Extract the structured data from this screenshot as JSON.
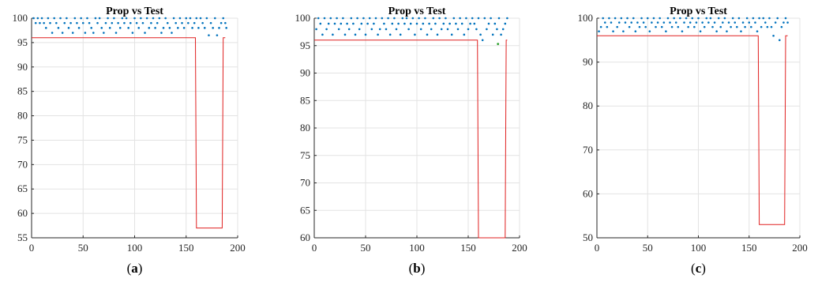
{
  "chart_data": [
    {
      "type": "scatter",
      "panel": "(a)",
      "panel_letter": "a",
      "title": "Prop vs Test",
      "xlabel": "",
      "ylabel": "",
      "xlim": [
        0,
        200
      ],
      "ylim": [
        55,
        100
      ],
      "xticks": [
        0,
        50,
        100,
        150,
        200
      ],
      "yticks": [
        55,
        60,
        65,
        70,
        75,
        80,
        85,
        90,
        95,
        100
      ],
      "grid": true,
      "colors": {
        "scatter": "#0072bd",
        "line": "#e02020",
        "green_point": "#2ca02c"
      },
      "scatter_points": [
        [
          2,
          100
        ],
        [
          4,
          99
        ],
        [
          6,
          100
        ],
        [
          8,
          99
        ],
        [
          10,
          100
        ],
        [
          12,
          99
        ],
        [
          14,
          98
        ],
        [
          16,
          100
        ],
        [
          18,
          99
        ],
        [
          20,
          97
        ],
        [
          22,
          100
        ],
        [
          24,
          99
        ],
        [
          26,
          98
        ],
        [
          28,
          100
        ],
        [
          30,
          97
        ],
        [
          32,
          99
        ],
        [
          34,
          100
        ],
        [
          36,
          98
        ],
        [
          38,
          99
        ],
        [
          40,
          97
        ],
        [
          42,
          100
        ],
        [
          44,
          99
        ],
        [
          46,
          98
        ],
        [
          48,
          100
        ],
        [
          50,
          99
        ],
        [
          52,
          97
        ],
        [
          54,
          100
        ],
        [
          56,
          99
        ],
        [
          58,
          98
        ],
        [
          60,
          97
        ],
        [
          62,
          100
        ],
        [
          64,
          99
        ],
        [
          66,
          100
        ],
        [
          68,
          98
        ],
        [
          70,
          97
        ],
        [
          72,
          99
        ],
        [
          74,
          100
        ],
        [
          76,
          98
        ],
        [
          78,
          99
        ],
        [
          80,
          100
        ],
        [
          82,
          97
        ],
        [
          84,
          99
        ],
        [
          86,
          98
        ],
        [
          88,
          100
        ],
        [
          90,
          99
        ],
        [
          92,
          100
        ],
        [
          94,
          98
        ],
        [
          96,
          99
        ],
        [
          98,
          97
        ],
        [
          100,
          100
        ],
        [
          102,
          99
        ],
        [
          104,
          98
        ],
        [
          106,
          100
        ],
        [
          108,
          99
        ],
        [
          110,
          97
        ],
        [
          112,
          100
        ],
        [
          114,
          98
        ],
        [
          116,
          99
        ],
        [
          118,
          100
        ],
        [
          120,
          98
        ],
        [
          122,
          99
        ],
        [
          124,
          100
        ],
        [
          126,
          97
        ],
        [
          128,
          98
        ],
        [
          130,
          100
        ],
        [
          132,
          99
        ],
        [
          134,
          98
        ],
        [
          136,
          97
        ],
        [
          138,
          100
        ],
        [
          140,
          99
        ],
        [
          142,
          98
        ],
        [
          144,
          100
        ],
        [
          146,
          99
        ],
        [
          148,
          98
        ],
        [
          150,
          100
        ],
        [
          152,
          99
        ],
        [
          154,
          100
        ],
        [
          156,
          98
        ],
        [
          158,
          99
        ],
        [
          160,
          100
        ],
        [
          162,
          98
        ],
        [
          164,
          100
        ],
        [
          166,
          99
        ],
        [
          168,
          98
        ],
        [
          170,
          100
        ],
        [
          172,
          96.5
        ],
        [
          174,
          99
        ],
        [
          176,
          98
        ],
        [
          178,
          100
        ],
        [
          180,
          96.5
        ],
        [
          182,
          98
        ],
        [
          184,
          99
        ],
        [
          186,
          100
        ],
        [
          188,
          99
        ],
        [
          189,
          98
        ]
      ],
      "line_points": [
        [
          0,
          96
        ],
        [
          159,
          96
        ],
        [
          160,
          57
        ],
        [
          185,
          57
        ],
        [
          186,
          96
        ],
        [
          188,
          96
        ]
      ]
    },
    {
      "type": "scatter",
      "panel": "(b)",
      "panel_letter": "b",
      "title": "Prop vs Test",
      "xlabel": "",
      "ylabel": "",
      "xlim": [
        0,
        200
      ],
      "ylim": [
        60,
        100
      ],
      "xticks": [
        0,
        50,
        100,
        150,
        200
      ],
      "yticks": [
        60,
        65,
        70,
        75,
        80,
        85,
        90,
        95,
        100
      ],
      "grid": true,
      "colors": {
        "scatter": "#0072bd",
        "line": "#e02020",
        "green_point": "#2ca02c"
      },
      "scatter_points": [
        [
          2,
          98
        ],
        [
          4,
          100
        ],
        [
          6,
          99
        ],
        [
          8,
          97
        ],
        [
          10,
          100
        ],
        [
          12,
          98
        ],
        [
          14,
          99
        ],
        [
          16,
          100
        ],
        [
          18,
          97
        ],
        [
          20,
          99
        ],
        [
          22,
          100
        ],
        [
          24,
          98
        ],
        [
          26,
          99
        ],
        [
          28,
          100
        ],
        [
          30,
          97
        ],
        [
          32,
          99
        ],
        [
          34,
          98
        ],
        [
          36,
          100
        ],
        [
          38,
          99
        ],
        [
          40,
          97
        ],
        [
          42,
          100
        ],
        [
          44,
          98
        ],
        [
          46,
          99
        ],
        [
          48,
          100
        ],
        [
          50,
          97
        ],
        [
          52,
          99
        ],
        [
          54,
          100
        ],
        [
          56,
          98
        ],
        [
          58,
          99
        ],
        [
          60,
          100
        ],
        [
          62,
          97
        ],
        [
          64,
          98
        ],
        [
          66,
          100
        ],
        [
          68,
          99
        ],
        [
          70,
          98
        ],
        [
          72,
          100
        ],
        [
          74,
          97
        ],
        [
          76,
          99
        ],
        [
          78,
          100
        ],
        [
          80,
          98
        ],
        [
          82,
          99
        ],
        [
          84,
          97
        ],
        [
          86,
          100
        ],
        [
          88,
          99
        ],
        [
          90,
          100
        ],
        [
          92,
          98
        ],
        [
          94,
          99
        ],
        [
          96,
          100
        ],
        [
          98,
          97
        ],
        [
          100,
          99
        ],
        [
          102,
          100
        ],
        [
          104,
          98
        ],
        [
          106,
          99
        ],
        [
          108,
          100
        ],
        [
          110,
          97
        ],
        [
          112,
          99
        ],
        [
          114,
          98
        ],
        [
          116,
          100
        ],
        [
          118,
          99
        ],
        [
          120,
          97
        ],
        [
          122,
          100
        ],
        [
          124,
          98
        ],
        [
          126,
          99
        ],
        [
          128,
          100
        ],
        [
          130,
          98
        ],
        [
          132,
          99
        ],
        [
          134,
          97
        ],
        [
          136,
          100
        ],
        [
          138,
          99
        ],
        [
          140,
          98
        ],
        [
          142,
          100
        ],
        [
          144,
          99
        ],
        [
          146,
          97
        ],
        [
          148,
          100
        ],
        [
          150,
          98
        ],
        [
          152,
          99
        ],
        [
          154,
          100
        ],
        [
          156,
          99
        ],
        [
          158,
          98
        ],
        [
          160,
          100
        ],
        [
          162,
          97
        ],
        [
          164,
          96
        ],
        [
          166,
          100
        ],
        [
          168,
          98
        ],
        [
          170,
          99
        ],
        [
          172,
          100
        ],
        [
          174,
          97
        ],
        [
          176,
          99
        ],
        [
          178,
          98
        ],
        [
          180,
          100
        ],
        [
          182,
          97
        ],
        [
          184,
          98
        ],
        [
          186,
          99
        ],
        [
          188,
          100
        ]
      ],
      "green_points": [
        [
          179,
          95.3
        ]
      ],
      "line_points": [
        [
          0,
          96
        ],
        [
          159,
          96
        ],
        [
          160,
          60
        ],
        [
          186,
          60
        ],
        [
          187,
          96
        ],
        [
          188,
          96
        ]
      ]
    },
    {
      "type": "scatter",
      "panel": "(c)",
      "panel_letter": "c",
      "title": "Prop vs Test",
      "xlabel": "",
      "ylabel": "",
      "xlim": [
        0,
        200
      ],
      "ylim": [
        50,
        100
      ],
      "xticks": [
        0,
        50,
        100,
        150,
        200
      ],
      "yticks": [
        50,
        60,
        70,
        80,
        90,
        100
      ],
      "grid": true,
      "colors": {
        "scatter": "#0072bd",
        "line": "#e02020",
        "green_point": "#2ca02c"
      },
      "scatter_points": [
        [
          2,
          97
        ],
        [
          4,
          98
        ],
        [
          6,
          100
        ],
        [
          8,
          99
        ],
        [
          10,
          98
        ],
        [
          12,
          100
        ],
        [
          14,
          99
        ],
        [
          16,
          97
        ],
        [
          18,
          100
        ],
        [
          20,
          98
        ],
        [
          22,
          99
        ],
        [
          24,
          100
        ],
        [
          26,
          97
        ],
        [
          28,
          99
        ],
        [
          30,
          100
        ],
        [
          32,
          98
        ],
        [
          34,
          99
        ],
        [
          36,
          100
        ],
        [
          38,
          97
        ],
        [
          40,
          99
        ],
        [
          42,
          98
        ],
        [
          44,
          100
        ],
        [
          46,
          99
        ],
        [
          48,
          98
        ],
        [
          50,
          100
        ],
        [
          52,
          97
        ],
        [
          54,
          99
        ],
        [
          56,
          100
        ],
        [
          58,
          98
        ],
        [
          60,
          99
        ],
        [
          62,
          100
        ],
        [
          64,
          98
        ],
        [
          66,
          99
        ],
        [
          68,
          97
        ],
        [
          70,
          100
        ],
        [
          72,
          99
        ],
        [
          74,
          98
        ],
        [
          76,
          100
        ],
        [
          78,
          99
        ],
        [
          80,
          98
        ],
        [
          82,
          100
        ],
        [
          84,
          97
        ],
        [
          86,
          99
        ],
        [
          88,
          100
        ],
        [
          90,
          98
        ],
        [
          92,
          99
        ],
        [
          94,
          100
        ],
        [
          96,
          98
        ],
        [
          98,
          99
        ],
        [
          100,
          100
        ],
        [
          102,
          97
        ],
        [
          104,
          99
        ],
        [
          106,
          98
        ],
        [
          108,
          100
        ],
        [
          110,
          99
        ],
        [
          112,
          100
        ],
        [
          114,
          98
        ],
        [
          116,
          99
        ],
        [
          118,
          97
        ],
        [
          120,
          100
        ],
        [
          122,
          98
        ],
        [
          124,
          99
        ],
        [
          126,
          100
        ],
        [
          128,
          97
        ],
        [
          130,
          99
        ],
        [
          132,
          98
        ],
        [
          134,
          100
        ],
        [
          136,
          99
        ],
        [
          138,
          98
        ],
        [
          140,
          100
        ],
        [
          142,
          97
        ],
        [
          144,
          99
        ],
        [
          146,
          98
        ],
        [
          148,
          100
        ],
        [
          150,
          99
        ],
        [
          152,
          98
        ],
        [
          154,
          100
        ],
        [
          156,
          99
        ],
        [
          158,
          97
        ],
        [
          160,
          100
        ],
        [
          162,
          98
        ],
        [
          164,
          100
        ],
        [
          166,
          99
        ],
        [
          168,
          98
        ],
        [
          170,
          100
        ],
        [
          172,
          98
        ],
        [
          174,
          96
        ],
        [
          176,
          99
        ],
        [
          178,
          100
        ],
        [
          180,
          95
        ],
        [
          182,
          98
        ],
        [
          184,
          99
        ],
        [
          186,
          100
        ],
        [
          188,
          99
        ]
      ],
      "line_points": [
        [
          0,
          96
        ],
        [
          159,
          96
        ],
        [
          160,
          53
        ],
        [
          185,
          53
        ],
        [
          186,
          96
        ],
        [
          188,
          96
        ]
      ]
    }
  ]
}
